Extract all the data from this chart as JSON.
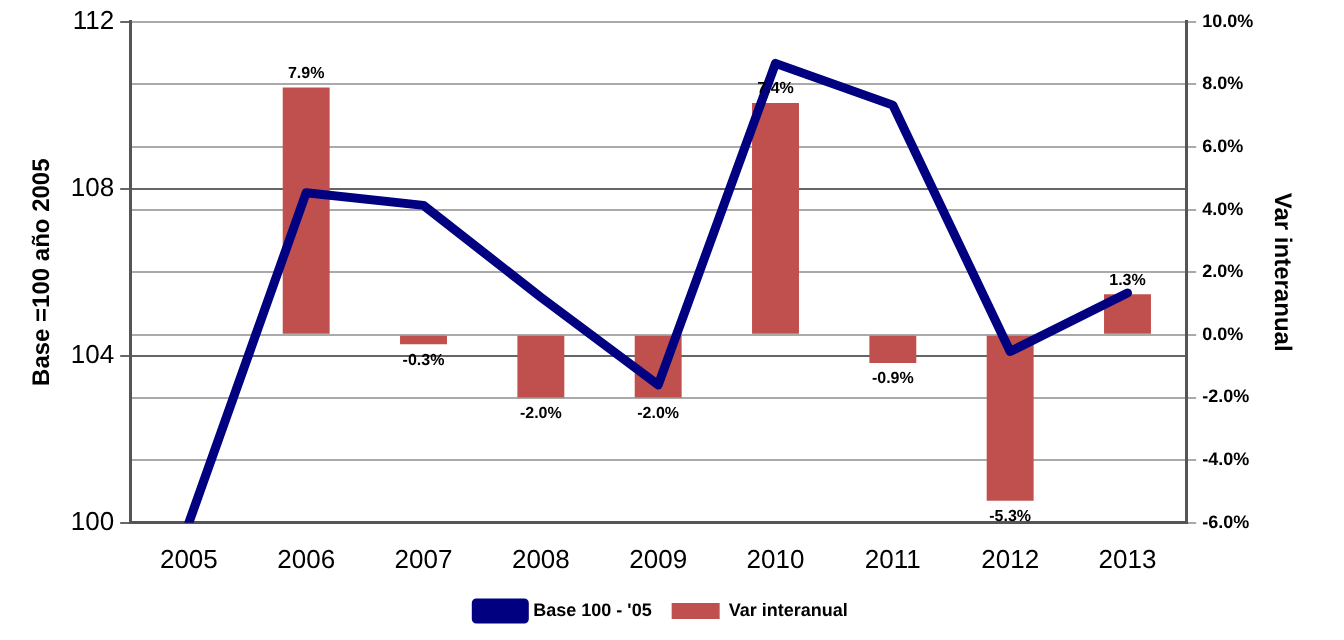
{
  "chart_data": {
    "type": "bar",
    "ylabel": "Base =100 año 2005",
    "y2label": "Var interanual",
    "categories": [
      "2005",
      "2006",
      "2007",
      "2008",
      "2009",
      "2010",
      "2011",
      "2012",
      "2013"
    ],
    "series": [
      {
        "name": "Var interanual",
        "axis": "y2",
        "color": "#c0504d",
        "values": [
          null,
          7.9,
          -0.3,
          -2.0,
          -2.0,
          7.4,
          -0.9,
          -5.3,
          1.3
        ],
        "value_labels": [
          null,
          "7.9%",
          "-0.3%",
          "-2.0%",
          "-2.0%",
          "7.4%",
          "-0.9%",
          "-5.3%",
          "1.3%"
        ]
      },
      {
        "name": "Base 100 - '05",
        "type": "line",
        "color": "#000080",
        "values": [
          100,
          107.9,
          107.6,
          105.4,
          103.3,
          111.0,
          110.0,
          104.1,
          105.5
        ]
      }
    ],
    "ylim": [
      100,
      112
    ],
    "yticks": [
      100,
      104,
      108,
      112
    ],
    "y2lim": [
      -6,
      10
    ],
    "y2ticks": [
      {
        "value": -6,
        "label": "-6.0%"
      },
      {
        "value": -4,
        "label": "-4.0%"
      },
      {
        "value": -2,
        "label": "-2.0%"
      },
      {
        "value": 0,
        "label": "0.0%"
      },
      {
        "value": 2,
        "label": "2.0%"
      },
      {
        "value": 4,
        "label": "4.0%"
      },
      {
        "value": 6,
        "label": "6.0%"
      },
      {
        "value": 8,
        "label": "8.0%"
      },
      {
        "value": 10,
        "label": "10.0%"
      }
    ],
    "grid": true,
    "legend": "bottom",
    "marker": "none",
    "line_style": "solid"
  }
}
